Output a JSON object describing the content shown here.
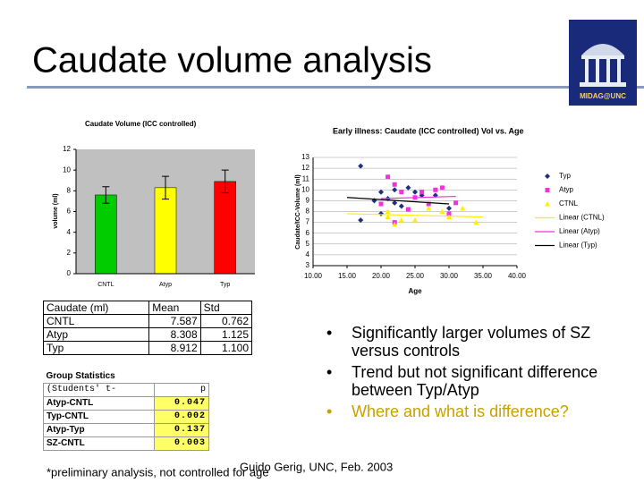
{
  "header": {
    "title": "Caudate volume analysis",
    "logo_text": "MIDAG@UNC"
  },
  "bar_chart": {
    "type": "bar",
    "title": "Caudate Volume (ICC controlled)",
    "y_label": "volume (ml)",
    "categories": [
      "CNTL",
      "Atyp",
      "Typ"
    ],
    "values": [
      7.6,
      8.3,
      8.9
    ],
    "errors": [
      0.8,
      1.1,
      1.1
    ],
    "colors": [
      "#00cc00",
      "#ffff00",
      "#ff0000"
    ],
    "ylim": [
      0,
      12
    ],
    "yticks": [
      0,
      2,
      4,
      6,
      8,
      10,
      12
    ]
  },
  "scatter_chart": {
    "type": "scatter",
    "title": "Early illness: Caudate (ICC controlled) Vol vs. Age",
    "x_label": "Age",
    "y_label": "Caudate/ICC-Volume (ml)",
    "xlim": [
      10,
      40
    ],
    "ylim": [
      3,
      13
    ],
    "xticks": [
      {
        "value": 10,
        "label": "10.00"
      },
      {
        "value": 15,
        "label": "15.00"
      },
      {
        "value": 20,
        "label": "20.00"
      },
      {
        "value": 25,
        "label": "25.00"
      },
      {
        "value": 30,
        "label": "30.00"
      },
      {
        "value": 35,
        "label": "35.00"
      },
      {
        "value": 40,
        "label": "40.00"
      }
    ],
    "yticks": [
      3,
      4,
      5,
      6,
      7,
      8,
      9,
      10,
      11,
      12,
      13
    ],
    "grid": true,
    "series": [
      {
        "name": "Typ",
        "color": "#1f2f7f",
        "marker": "diamond",
        "x": [
          17,
          20,
          21,
          22,
          23,
          24,
          25,
          26,
          28,
          30,
          19,
          17,
          20,
          22
        ],
        "values": [
          12.2,
          9.8,
          9.2,
          10,
          8.5,
          10.2,
          9.8,
          9.5,
          9.5,
          8.3,
          9,
          7.2,
          7.8,
          8.8
        ]
      },
      {
        "name": "Atyp",
        "color": "#ee33dd",
        "marker": "square",
        "x": [
          20,
          21,
          22,
          23,
          24,
          25,
          26,
          27,
          28,
          29,
          30,
          31,
          22
        ],
        "values": [
          8.7,
          11.2,
          10.5,
          9.8,
          8.2,
          9.3,
          9.8,
          8.7,
          10,
          10.2,
          7.8,
          8.8,
          7
        ]
      },
      {
        "name": "CTNL",
        "color": "#ffee00",
        "marker": "triangle",
        "x": [
          21,
          22,
          23,
          25,
          27,
          29,
          30,
          32,
          34,
          21
        ],
        "values": [
          8,
          6.8,
          7.2,
          7.2,
          8.3,
          8,
          7.5,
          8.3,
          7,
          7.5
        ]
      },
      {
        "name": "Linear (CTNL)",
        "color": "#ffee00",
        "marker": "line",
        "x": [
          15,
          35
        ],
        "values": [
          7.8,
          7.5
        ]
      },
      {
        "name": "Linear (Atyp)",
        "color": "#ee33dd",
        "marker": "line",
        "x": [
          20,
          31
        ],
        "values": [
          9.2,
          9.4
        ]
      },
      {
        "name": "Linear (Typ)",
        "color": "#000000",
        "marker": "line",
        "x": [
          15,
          30
        ],
        "values": [
          9.3,
          8.7
        ]
      }
    ]
  },
  "stats_table": {
    "header": [
      "Caudate (ml)",
      "Mean",
      "Std"
    ],
    "rows": [
      [
        "CNTL",
        "7.587",
        "0.762"
      ],
      [
        "Atyp",
        "8.308",
        "1.125"
      ],
      [
        "Typ",
        "8.912",
        "1.100"
      ]
    ]
  },
  "group_table": {
    "title": "Group Statistics",
    "header": [
      "(Students' t-",
      "p"
    ],
    "rows": [
      [
        "Atyp-CNTL",
        "0.047"
      ],
      [
        "Typ-CNTL",
        "0.002"
      ],
      [
        "Atyp-Typ",
        "0.137"
      ],
      [
        "SZ-CNTL",
        "0.003"
      ]
    ]
  },
  "bullets": [
    {
      "text": "Significantly larger volumes of SZ versus controls",
      "color": "#000000"
    },
    {
      "text": "Trend but not significant difference between Typ/Atyp",
      "color": "#000000"
    },
    {
      "text": "Where and what is difference?",
      "color": "#c8a000"
    }
  ],
  "footer": {
    "note": "*preliminary analysis, not controlled for age",
    "credit": "Guido Gerig, UNC, Feb. 2003"
  }
}
